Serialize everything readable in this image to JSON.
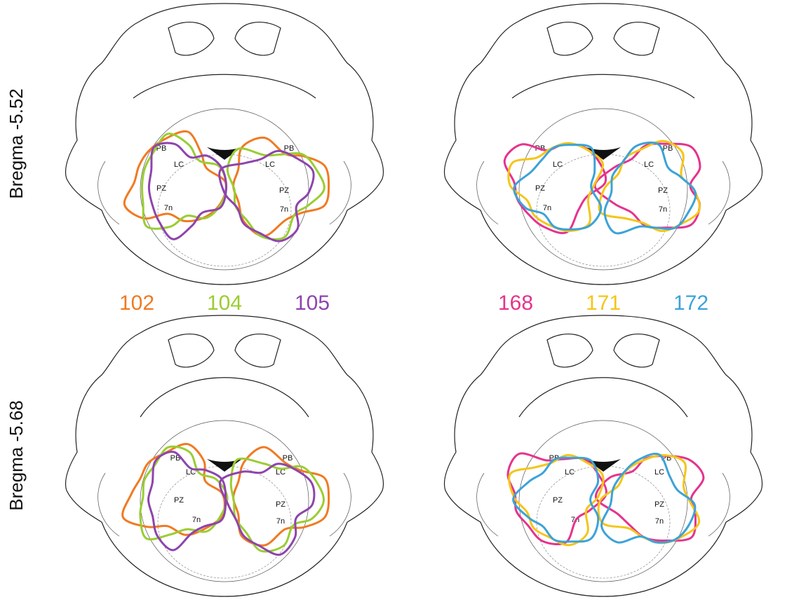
{
  "rows": [
    {
      "label": "Bregma -5.52"
    },
    {
      "label": "Bregma -5.68"
    }
  ],
  "groups": [
    {
      "items": [
        {
          "label": "102",
          "color": "#f07a22"
        },
        {
          "label": "104",
          "color": "#9acd32"
        },
        {
          "label": "105",
          "color": "#8e44ad"
        }
      ]
    },
    {
      "items": [
        {
          "label": "168",
          "color": "#e5338d"
        },
        {
          "label": "171",
          "color": "#f5c518"
        },
        {
          "label": "172",
          "color": "#3ba3d8"
        }
      ]
    }
  ],
  "regions": [
    "PB",
    "LC",
    "PZ",
    "7n"
  ]
}
